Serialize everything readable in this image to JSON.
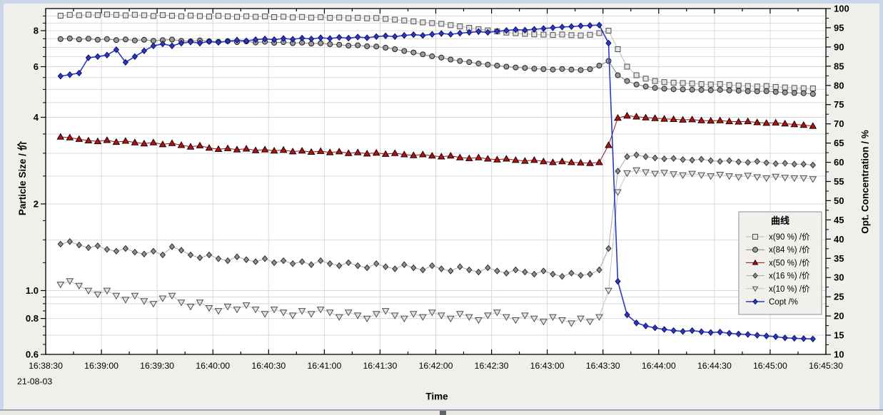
{
  "colors": {
    "frame": "#cad7e8",
    "panel": "#f0efeb",
    "plot_bg": "#ffffff",
    "grid": "#d9d9d9",
    "axis": "#000000",
    "legend_bg": "#f1f0ec",
    "legend_border": "#8f8f8f"
  },
  "chart_data": {
    "type": "line",
    "x_axis": {
      "label": "Time",
      "date_label": "21-08-03",
      "range_s": [
        0,
        420
      ],
      "tick_interval_s": 30,
      "minor_interval_s": 15,
      "tick_labels": [
        "16:38:30",
        "16:39:00",
        "16:39:30",
        "16:40:00",
        "16:40:30",
        "16:41:00",
        "16:41:30",
        "16:42:00",
        "16:42:30",
        "16:43:00",
        "16:43:30",
        "16:44:00",
        "16:44:30",
        "16:45:00",
        "16:45:30"
      ]
    },
    "y_left": {
      "label": "Particle Size / 价",
      "scale": "log",
      "min": 0.6,
      "max": 9.55,
      "tick_values": [
        8,
        6,
        4,
        2,
        1,
        0.8,
        0.6
      ],
      "tick_labels": [
        "8",
        "6",
        "4",
        "2",
        "1.0",
        "0.8",
        "0.6"
      ],
      "minor_ticks": [
        9,
        8.5,
        7.5,
        7,
        6.5,
        5.5,
        5,
        4.5,
        3.5,
        3,
        2.5,
        1.75,
        1.5,
        1.25,
        0.95,
        0.9,
        0.85,
        0.75,
        0.7,
        0.65
      ],
      "gridlines": [
        9,
        8.5,
        8,
        7.5,
        7,
        6.5,
        6,
        5.5,
        5,
        4.5,
        4,
        3.5,
        3,
        2.5,
        2,
        1.5,
        1,
        0.95,
        0.9,
        0.8,
        0.7
      ]
    },
    "y_right": {
      "label": "Opt. Concentration / %",
      "scale": "linear",
      "min": 10,
      "max": 100,
      "tick_step": 5,
      "minor_step": 2.5
    },
    "legend": {
      "title": "曲线"
    },
    "t_start_s": 8,
    "t_step_s": 5,
    "n_points": 82,
    "series": [
      {
        "name": "x(90 %) /价",
        "axis": "left",
        "marker": "square",
        "fill": "#e4e4e4",
        "stroke": "#4f4f4f",
        "line": "#bdbdbd",
        "line_width": 1,
        "marker_size": 7,
        "values": [
          9.02,
          9.08,
          9.05,
          9.1,
          9.06,
          9.11,
          9.08,
          9.04,
          9.09,
          9.05,
          9.0,
          9.06,
          9.02,
          8.98,
          9.03,
          8.99,
          8.96,
          9.01,
          8.97,
          8.94,
          8.98,
          8.94,
          8.97,
          8.92,
          8.95,
          8.9,
          8.93,
          8.88,
          8.91,
          8.86,
          8.89,
          8.84,
          8.87,
          8.83,
          8.85,
          8.79,
          8.74,
          8.68,
          8.62,
          8.55,
          8.5,
          8.45,
          8.36,
          8.28,
          8.18,
          8.1,
          8.02,
          7.95,
          7.88,
          7.84,
          7.8,
          7.77,
          7.75,
          7.73,
          7.76,
          7.72,
          7.7,
          7.74,
          7.85,
          8.0,
          6.9,
          6.0,
          5.6,
          5.45,
          5.35,
          5.3,
          5.28,
          5.26,
          5.24,
          5.22,
          5.2,
          5.22,
          5.18,
          5.16,
          5.14,
          5.12,
          5.14,
          5.1,
          5.08,
          5.06,
          5.05,
          5.04
        ]
      },
      {
        "name": "x(84 %) /价",
        "axis": "left",
        "marker": "circle",
        "fill": "#9b9b9b",
        "stroke": "#1f1f1f",
        "line": "#7f7f7f",
        "line_width": 1,
        "marker_size": 7,
        "values": [
          7.48,
          7.52,
          7.46,
          7.5,
          7.44,
          7.48,
          7.42,
          7.46,
          7.4,
          7.44,
          7.38,
          7.42,
          7.45,
          7.38,
          7.35,
          7.4,
          7.35,
          7.32,
          7.36,
          7.3,
          7.34,
          7.28,
          7.32,
          7.26,
          7.3,
          7.24,
          7.27,
          7.21,
          7.24,
          7.18,
          7.15,
          7.1,
          7.12,
          7.06,
          7.05,
          6.98,
          6.9,
          6.8,
          6.72,
          6.62,
          6.52,
          6.45,
          6.35,
          6.28,
          6.22,
          6.15,
          6.1,
          6.05,
          6.0,
          5.96,
          5.94,
          5.9,
          5.88,
          5.86,
          5.89,
          5.86,
          5.84,
          5.88,
          6.05,
          6.28,
          5.6,
          5.35,
          5.2,
          5.12,
          5.06,
          5.03,
          5.01,
          5.0,
          4.99,
          4.98,
          4.97,
          4.98,
          4.96,
          4.95,
          4.93,
          4.92,
          4.93,
          4.9,
          4.88,
          4.86,
          4.85,
          4.82
        ]
      },
      {
        "name": "x(50 %) /价",
        "axis": "left",
        "marker": "triangle-up",
        "fill": "#b01212",
        "stroke": "#1d0000",
        "line": "#8c1010",
        "line_width": 1,
        "marker_size": 9,
        "values": [
          3.42,
          3.4,
          3.36,
          3.32,
          3.3,
          3.33,
          3.28,
          3.31,
          3.27,
          3.24,
          3.27,
          3.22,
          3.25,
          3.2,
          3.16,
          3.19,
          3.13,
          3.1,
          3.12,
          3.09,
          3.11,
          3.07,
          3.09,
          3.06,
          3.08,
          3.04,
          3.06,
          3.03,
          3.05,
          3.02,
          3.04,
          3.0,
          3.02,
          2.99,
          3.01,
          2.98,
          3.0,
          2.97,
          2.95,
          2.97,
          2.94,
          2.92,
          2.94,
          2.9,
          2.88,
          2.9,
          2.87,
          2.85,
          2.87,
          2.84,
          2.82,
          2.84,
          2.81,
          2.79,
          2.81,
          2.79,
          2.78,
          2.77,
          2.79,
          3.2,
          3.98,
          4.05,
          4.02,
          3.99,
          3.97,
          3.95,
          3.94,
          3.92,
          3.93,
          3.9,
          3.89,
          3.9,
          3.87,
          3.86,
          3.87,
          3.84,
          3.82,
          3.83,
          3.8,
          3.78,
          3.76,
          3.73
        ]
      },
      {
        "name": "x(16 %) /价",
        "axis": "left",
        "marker": "diamond",
        "fill": "#8f8f8f",
        "stroke": "#2e2e2e",
        "line": "#a8a8a8",
        "line_width": 1,
        "marker_size": 8,
        "values": [
          1.45,
          1.48,
          1.44,
          1.41,
          1.43,
          1.39,
          1.37,
          1.4,
          1.36,
          1.34,
          1.37,
          1.33,
          1.42,
          1.38,
          1.33,
          1.3,
          1.33,
          1.29,
          1.27,
          1.31,
          1.28,
          1.26,
          1.29,
          1.25,
          1.27,
          1.24,
          1.26,
          1.23,
          1.27,
          1.24,
          1.22,
          1.25,
          1.22,
          1.2,
          1.24,
          1.21,
          1.19,
          1.23,
          1.2,
          1.18,
          1.22,
          1.19,
          1.17,
          1.21,
          1.18,
          1.16,
          1.2,
          1.17,
          1.15,
          1.18,
          1.16,
          1.14,
          1.17,
          1.14,
          1.12,
          1.15,
          1.13,
          1.14,
          1.18,
          1.4,
          2.6,
          2.92,
          2.96,
          2.92,
          2.89,
          2.87,
          2.88,
          2.85,
          2.84,
          2.86,
          2.83,
          2.81,
          2.83,
          2.8,
          2.79,
          2.81,
          2.78,
          2.76,
          2.77,
          2.75,
          2.75,
          2.73
        ]
      },
      {
        "name": "x(10 %) /价",
        "axis": "left",
        "marker": "triangle-down",
        "fill": "#e2e2e2",
        "stroke": "#4f4f4f",
        "line": "#c4c4c4",
        "line_width": 1,
        "marker_size": 9,
        "values": [
          1.05,
          1.08,
          1.04,
          1.0,
          0.97,
          1.0,
          0.96,
          0.93,
          0.96,
          0.92,
          0.9,
          0.94,
          0.96,
          0.91,
          0.88,
          0.91,
          0.87,
          0.85,
          0.88,
          0.86,
          0.89,
          0.86,
          0.83,
          0.86,
          0.84,
          0.82,
          0.85,
          0.83,
          0.86,
          0.84,
          0.81,
          0.84,
          0.82,
          0.8,
          0.83,
          0.85,
          0.82,
          0.8,
          0.83,
          0.81,
          0.84,
          0.82,
          0.8,
          0.83,
          0.81,
          0.79,
          0.82,
          0.84,
          0.81,
          0.79,
          0.82,
          0.8,
          0.78,
          0.81,
          0.79,
          0.77,
          0.8,
          0.78,
          0.81,
          1.0,
          2.2,
          2.56,
          2.62,
          2.58,
          2.55,
          2.57,
          2.54,
          2.52,
          2.55,
          2.52,
          2.5,
          2.53,
          2.5,
          2.48,
          2.51,
          2.48,
          2.46,
          2.49,
          2.47,
          2.46,
          2.46,
          2.44
        ]
      },
      {
        "name": "Copt /%",
        "axis": "right",
        "marker": "diamond",
        "fill": "#2b38c4",
        "stroke": "#0c1260",
        "line": "#2b38c4",
        "line_width": 1.6,
        "marker_size": 8,
        "values": [
          82.4,
          82.8,
          83.2,
          87.2,
          87.5,
          87.9,
          89.3,
          86.0,
          87.5,
          89.0,
          90.3,
          90.8,
          90.3,
          91.0,
          91.3,
          91.0,
          91.4,
          91.2,
          91.5,
          91.8,
          91.6,
          91.9,
          92.1,
          91.9,
          92.2,
          92.0,
          92.3,
          92.1,
          92.4,
          92.2,
          92.5,
          92.3,
          92.6,
          92.4,
          92.7,
          92.9,
          92.7,
          93.0,
          93.2,
          93.0,
          93.3,
          93.5,
          93.3,
          93.6,
          93.8,
          94.0,
          93.8,
          94.1,
          94.3,
          94.5,
          94.4,
          94.6,
          94.8,
          95.0,
          95.2,
          95.3,
          95.5,
          95.6,
          95.7,
          91.0,
          29.0,
          20.3,
          18.2,
          17.4,
          16.9,
          16.5,
          16.2,
          16.0,
          16.2,
          15.9,
          15.7,
          15.8,
          15.5,
          15.3,
          15.2,
          15.0,
          14.8,
          14.6,
          14.3,
          14.2,
          14.1,
          14.0
        ]
      }
    ]
  }
}
